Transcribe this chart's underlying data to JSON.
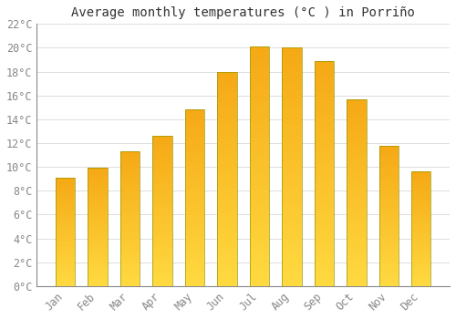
{
  "title": "Average monthly temperatures (°C ) in Porriño",
  "months": [
    "Jan",
    "Feb",
    "Mar",
    "Apr",
    "May",
    "Jun",
    "Jul",
    "Aug",
    "Sep",
    "Oct",
    "Nov",
    "Dec"
  ],
  "values": [
    9.1,
    9.9,
    11.3,
    12.6,
    14.8,
    18.0,
    20.1,
    20.0,
    18.9,
    15.7,
    11.8,
    9.6
  ],
  "bar_color_top": "#F5A800",
  "bar_color_bottom": "#FFD050",
  "bar_edge_color": "#888800",
  "ylim": [
    0,
    22
  ],
  "ytick_step": 2,
  "background_color": "#FFFFFF",
  "grid_color": "#DDDDDD",
  "title_fontsize": 10,
  "tick_fontsize": 8.5,
  "font_family": "monospace"
}
